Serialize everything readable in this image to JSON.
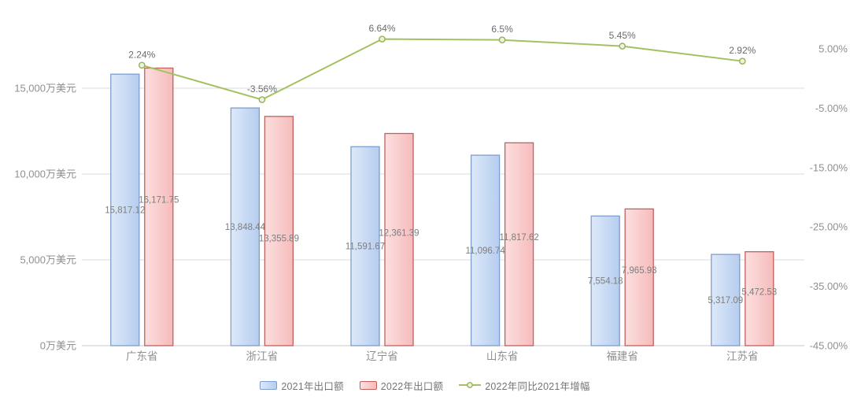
{
  "chart_data": {
    "type": "bar",
    "combo": "bar+line dual-axis",
    "title": "",
    "grid": true,
    "categories": [
      "广东省",
      "浙江省",
      "辽宁省",
      "山东省",
      "福建省",
      "江苏省"
    ],
    "series": [
      {
        "name": "2021年出口额",
        "type": "bar",
        "axis": "left",
        "fill_from": "#DDE9F9",
        "fill_to": "#B6CDEF",
        "border": "#7E9ECD",
        "values": [
          15817.12,
          13848.44,
          11591.67,
          11096.74,
          7554.18,
          5317.09
        ],
        "labels": [
          "15,817.12",
          "13,848.44",
          "11,591.67",
          "11,096.74",
          "7,554.18",
          "5,317.09"
        ]
      },
      {
        "name": "2022年出口额",
        "type": "bar",
        "axis": "left",
        "fill_from": "#FCDFDF",
        "fill_to": "#F6BBBB",
        "border": "#BF615E",
        "values": [
          16171.75,
          13355.89,
          12361.39,
          11817.62,
          7965.93,
          5472.53
        ],
        "labels": [
          "16,171.75",
          "13,355.89",
          "12,361.39",
          "11,817.62",
          "7,965.93",
          "5,472.53"
        ]
      },
      {
        "name": "2022年同比2021年增幅",
        "type": "line",
        "axis": "right",
        "color": "#A4C161",
        "marker_fill": "#EDF3DE",
        "marker_stroke": "#93B151",
        "values": [
          2.24,
          -3.56,
          6.64,
          6.5,
          5.45,
          2.92
        ],
        "labels": [
          "2.24%",
          "-3.56%",
          "6.64%",
          "6.5%",
          "5.45%",
          "2.92%"
        ]
      }
    ],
    "left_axis": {
      "unit": "万美元",
      "min": 0,
      "ticks": [
        {
          "value": 0,
          "label": "0万美元"
        },
        {
          "value": 5000,
          "label": "5,000万美元"
        },
        {
          "value": 10000,
          "label": "10,000万美元"
        },
        {
          "value": 15000,
          "label": "15,000万美元"
        }
      ]
    },
    "right_axis": {
      "min": -45,
      "max": 5,
      "ticks": [
        {
          "value": 5,
          "label": "5.00%"
        },
        {
          "value": -5,
          "label": "-5.00%"
        },
        {
          "value": -15,
          "label": "-15.00%"
        },
        {
          "value": -25,
          "label": "-25.00%"
        },
        {
          "value": -35,
          "label": "-35.00%"
        },
        {
          "value": -45,
          "label": "-45.00%"
        }
      ]
    },
    "legend": {
      "position": "bottom",
      "items": [
        "2021年出口额",
        "2022年出口额",
        "2022年同比2021年增幅"
      ]
    },
    "colors": {
      "gridline": "#DBDBDB",
      "axis_line": "#C8C8C8",
      "axis_text": "#909090",
      "bar_label_text": "#7E7E7E",
      "line_label_text": "#6B6B6B"
    }
  }
}
